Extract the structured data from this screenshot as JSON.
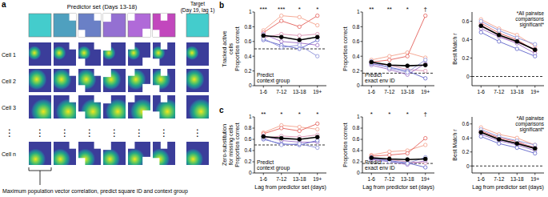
{
  "figure": {
    "panel_a": {
      "letter": "a",
      "predictor_label": "Predictor set (Days 13-18)",
      "target_label": [
        "Target",
        "(Day 19, lag 1)"
      ],
      "environments": [
        {
          "color": "#44cccc"
        },
        {
          "color": "#4fa0bf"
        },
        {
          "color": "#6a80c6"
        },
        {
          "color": "#9470d2"
        },
        {
          "color": "#b06ad8"
        },
        {
          "color": "#c247bd"
        },
        {
          "color": "#44cccc"
        }
      ],
      "cells": [
        {
          "label": "Cell 1",
          "field": [
            0.25,
            0.45
          ],
          "radius": 0.3
        },
        {
          "label": "Cell 2",
          "field": [
            0.35,
            0.45
          ],
          "radius": 0.45
        },
        {
          "label": "Cell 3",
          "field": [
            0.65,
            0.7
          ],
          "radius": 0.55
        },
        {
          "label": "Cell n",
          "field": [
            0.3,
            0.75
          ],
          "radius": 0.45
        }
      ],
      "dots": "⋮",
      "caption": "Maximum population vector correlation, predict square ID and context group"
    },
    "rows": [
      {
        "letter": "b",
        "title": [
          "Tracked active",
          "cells"
        ]
      },
      {
        "letter": "c",
        "title": [
          "Zero-substitution",
          "for missing cells"
        ]
      }
    ]
  },
  "chart_data": [
    {
      "type": "line",
      "y_label": "Proportion correct",
      "categories": [
        "1-6",
        "7-12",
        "13-18",
        "19+"
      ],
      "ylim": [
        0,
        1
      ],
      "yticks": [
        0,
        0.2,
        0.4,
        0.6,
        0.8,
        1
      ],
      "reference_line": 0.5,
      "significance": [
        "***",
        "***",
        "*",
        "*"
      ],
      "inner_label": [
        "Predict",
        "context group"
      ],
      "series": [
        {
          "color": "#f4a08a",
          "marker": "open",
          "values": [
            0.75,
            0.95,
            0.93,
            0.82
          ]
        },
        {
          "color": "#e3605a",
          "marker": "open",
          "values": [
            0.72,
            0.88,
            0.8,
            0.95
          ]
        },
        {
          "color": "#d98fb0",
          "marker": "open",
          "values": [
            0.65,
            0.7,
            0.68,
            0.7
          ]
        },
        {
          "color": "#9b6bc4",
          "marker": "open",
          "values": [
            0.7,
            0.6,
            0.58,
            0.55
          ]
        },
        {
          "color": "#5e63c9",
          "marker": "open",
          "values": [
            0.62,
            0.55,
            0.5,
            0.62
          ]
        },
        {
          "color": "#8a8fd8",
          "marker": "open",
          "values": [
            0.64,
            0.52,
            0.55,
            0.4
          ]
        },
        {
          "color": "#000000",
          "marker": "filled",
          "values": [
            0.68,
            0.66,
            0.62,
            0.66
          ]
        }
      ]
    },
    {
      "type": "line",
      "y_label": "Proportion correct",
      "categories": [
        "1-6",
        "7-12",
        "13-18",
        "19+"
      ],
      "ylim": [
        0,
        1
      ],
      "yticks": [
        0,
        0.2,
        0.4,
        0.6,
        0.8,
        1
      ],
      "reference_line": 0.17,
      "significance": [
        "**",
        "**",
        "*",
        "†"
      ],
      "inner_label": [
        "Predict",
        "exact env ID"
      ],
      "series": [
        {
          "color": "#f4a08a",
          "marker": "open",
          "values": [
            0.35,
            0.4,
            0.45,
            0.38
          ]
        },
        {
          "color": "#e3605a",
          "marker": "open",
          "values": [
            0.32,
            0.35,
            0.4,
            0.95
          ]
        },
        {
          "color": "#d98fb0",
          "marker": "open",
          "values": [
            0.3,
            0.28,
            0.22,
            0.2
          ]
        },
        {
          "color": "#9b6bc4",
          "marker": "open",
          "values": [
            0.28,
            0.22,
            0.15,
            0.3
          ]
        },
        {
          "color": "#5e63c9",
          "marker": "open",
          "values": [
            0.3,
            0.25,
            0.2,
            0.1
          ]
        },
        {
          "color": "#8a8fd8",
          "marker": "open",
          "values": [
            0.33,
            0.24,
            0.18,
            0.35
          ]
        },
        {
          "color": "#000000",
          "marker": "filled",
          "values": [
            0.32,
            0.28,
            0.27,
            0.28
          ]
        }
      ]
    },
    {
      "type": "line",
      "y_label": "Best Match r",
      "categories": [
        "1-6",
        "7-12",
        "13-18",
        "19+"
      ],
      "ylim": [
        -0.1,
        0.7
      ],
      "yticks": [
        0,
        0.2,
        0.4,
        0.6
      ],
      "reference_line": 0,
      "note": [
        "*All pairwise",
        "comparisons",
        "significant*"
      ],
      "series": [
        {
          "color": "#f4a08a",
          "marker": "open",
          "values": [
            0.62,
            0.52,
            0.45,
            0.33
          ]
        },
        {
          "color": "#e3605a",
          "marker": "open",
          "values": [
            0.58,
            0.47,
            0.4,
            0.28
          ]
        },
        {
          "color": "#d98fb0",
          "marker": "open",
          "values": [
            0.56,
            0.44,
            0.37,
            0.3
          ]
        },
        {
          "color": "#9b6bc4",
          "marker": "open",
          "values": [
            0.52,
            0.43,
            0.36,
            0.25
          ]
        },
        {
          "color": "#5e63c9",
          "marker": "open",
          "values": [
            0.48,
            0.38,
            0.3,
            0.22
          ]
        },
        {
          "color": "#8a8fd8",
          "marker": "open",
          "values": [
            0.6,
            0.5,
            0.42,
            0.35
          ]
        },
        {
          "color": "#000000",
          "marker": "filled",
          "values": [
            0.55,
            0.45,
            0.38,
            0.29
          ]
        }
      ]
    },
    {
      "type": "line",
      "y_label": "Proportion correct",
      "x_label": "Lag from predictor set (days)",
      "categories": [
        "1-6",
        "7-12",
        "13-18",
        "19+"
      ],
      "ylim": [
        0,
        1
      ],
      "yticks": [
        0,
        0.2,
        0.4,
        0.6,
        0.8,
        1
      ],
      "reference_line": 0.5,
      "significance": [
        "**",
        "*",
        "*",
        "*"
      ],
      "inner_label": [
        "Predict",
        "context group"
      ],
      "series": [
        {
          "color": "#f4a08a",
          "marker": "open",
          "values": [
            0.72,
            0.85,
            0.82,
            0.78
          ]
        },
        {
          "color": "#e3605a",
          "marker": "open",
          "values": [
            0.7,
            0.8,
            0.75,
            0.88
          ]
        },
        {
          "color": "#d98fb0",
          "marker": "open",
          "values": [
            0.62,
            0.66,
            0.64,
            0.68
          ]
        },
        {
          "color": "#9b6bc4",
          "marker": "open",
          "values": [
            0.66,
            0.58,
            0.55,
            0.55
          ]
        },
        {
          "color": "#5e63c9",
          "marker": "open",
          "values": [
            0.6,
            0.52,
            0.5,
            0.58
          ]
        },
        {
          "color": "#8a8fd8",
          "marker": "open",
          "values": [
            0.62,
            0.5,
            0.52,
            0.45
          ]
        },
        {
          "color": "#000000",
          "marker": "filled",
          "values": [
            0.65,
            0.62,
            0.6,
            0.64
          ]
        }
      ]
    },
    {
      "type": "line",
      "y_label": "Proportion correct",
      "x_label": "Lag from predictor set (days)",
      "categories": [
        "1-6",
        "7-12",
        "13-18",
        "19+"
      ],
      "ylim": [
        0,
        1
      ],
      "yticks": [
        0,
        0.2,
        0.4,
        0.6,
        0.8,
        1
      ],
      "reference_line": 0.17,
      "significance": [
        "*",
        "*",
        "*",
        "†"
      ],
      "inner_label": [
        "Predict",
        "exact env ID"
      ],
      "series": [
        {
          "color": "#f4a08a",
          "marker": "open",
          "values": [
            0.32,
            0.38,
            0.4,
            0.5
          ]
        },
        {
          "color": "#e3605a",
          "marker": "open",
          "values": [
            0.3,
            0.32,
            0.35,
            0.62
          ]
        },
        {
          "color": "#d98fb0",
          "marker": "open",
          "values": [
            0.25,
            0.24,
            0.2,
            0.18
          ]
        },
        {
          "color": "#9b6bc4",
          "marker": "open",
          "values": [
            0.24,
            0.2,
            0.15,
            0.22
          ]
        },
        {
          "color": "#5e63c9",
          "marker": "open",
          "values": [
            0.26,
            0.22,
            0.18,
            0.1
          ]
        },
        {
          "color": "#8a8fd8",
          "marker": "open",
          "values": [
            0.28,
            0.2,
            0.17,
            0.28
          ]
        },
        {
          "color": "#000000",
          "marker": "filled",
          "values": [
            0.27,
            0.25,
            0.24,
            0.25
          ]
        }
      ]
    },
    {
      "type": "line",
      "y_label": "Best Match r",
      "x_label": "Lag from predictor set (days)",
      "categories": [
        "1-6",
        "7-12",
        "13-18",
        "19+"
      ],
      "ylim": [
        -0.1,
        0.7
      ],
      "yticks": [
        0,
        0.2,
        0.4,
        0.6
      ],
      "reference_line": 0,
      "note": [
        "*All pairwise",
        "comparisons",
        "significant*"
      ],
      "series": [
        {
          "color": "#f4a08a",
          "marker": "open",
          "values": [
            0.55,
            0.45,
            0.4,
            0.3
          ]
        },
        {
          "color": "#e3605a",
          "marker": "open",
          "values": [
            0.5,
            0.4,
            0.35,
            0.25
          ]
        },
        {
          "color": "#d98fb0",
          "marker": "open",
          "values": [
            0.49,
            0.38,
            0.33,
            0.27
          ]
        },
        {
          "color": "#9b6bc4",
          "marker": "open",
          "values": [
            0.45,
            0.36,
            0.3,
            0.22
          ]
        },
        {
          "color": "#5e63c9",
          "marker": "open",
          "values": [
            0.42,
            0.32,
            0.26,
            0.18
          ]
        },
        {
          "color": "#8a8fd8",
          "marker": "open",
          "values": [
            0.52,
            0.42,
            0.36,
            0.3
          ]
        },
        {
          "color": "#000000",
          "marker": "filled",
          "values": [
            0.48,
            0.38,
            0.32,
            0.25
          ]
        }
      ]
    }
  ]
}
